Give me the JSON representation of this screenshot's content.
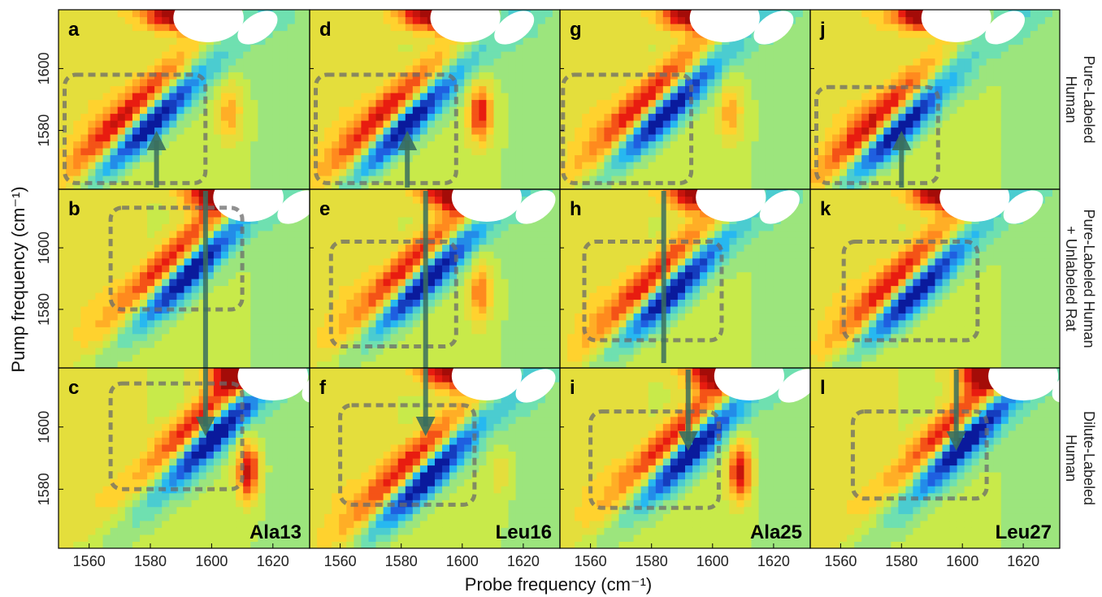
{
  "chart_data": {
    "type": "heatmap",
    "xlabel": "Probe frequency (cm⁻¹)",
    "ylabel": "Pump frequency (cm⁻¹)",
    "xlim": [
      1550,
      1632
    ],
    "ylim": [
      1561,
      1619
    ],
    "x_ticks": [
      "1560",
      "1580",
      "1600",
      "1620"
    ],
    "y_ticks": [
      "1580",
      "1600"
    ],
    "grid": false,
    "colormap": [
      "#0a1a9c",
      "#1f5fe0",
      "#27b8f0",
      "#6fe0b0",
      "#c8ea4a",
      "#ffd22e",
      "#ff8a1e",
      "#e81c10",
      "#a40c08"
    ],
    "rows": [
      {
        "label_lines": [
          "Pure-Labeled",
          "Human"
        ]
      },
      {
        "label_lines": [
          "Pure-Labeled Human",
          "+ Unlabeled Rat"
        ]
      },
      {
        "label_lines": [
          "Dilute-Labeled",
          "Human"
        ]
      }
    ],
    "columns": [
      {
        "residue": "Ala13"
      },
      {
        "residue": "Leu16"
      },
      {
        "residue": "Ala25"
      },
      {
        "residue": "Leu27"
      }
    ],
    "panels": [
      {
        "letter": "a",
        "row": 0,
        "col": 0,
        "bleach": [
          1579,
          1582
        ],
        "pos_x": 1606,
        "pos_amp": 0.45,
        "box": [
          1552,
          1598,
          1563,
          1598
        ]
      },
      {
        "letter": "b",
        "row": 1,
        "col": 0,
        "bleach": [
          1592,
          1592
        ],
        "pos_x": 0,
        "pos_amp": 0,
        "box": [
          1567,
          1610,
          1580,
          1613
        ]
      },
      {
        "letter": "c",
        "row": 2,
        "col": 0,
        "bleach": [
          1600,
          1597
        ],
        "pos_x": 1612,
        "pos_amp": 0.95,
        "box": [
          1567,
          1610,
          1580,
          1614
        ]
      },
      {
        "letter": "d",
        "row": 0,
        "col": 1,
        "bleach": [
          1581,
          1582
        ],
        "pos_x": 1606,
        "pos_amp": 0.85,
        "box": [
          1552,
          1598,
          1563,
          1598
        ]
      },
      {
        "letter": "e",
        "row": 1,
        "col": 1,
        "bleach": [
          1588,
          1590
        ],
        "pos_x": 1606,
        "pos_amp": 0.6,
        "box": [
          1557,
          1598,
          1568,
          1602
        ]
      },
      {
        "letter": "f",
        "row": 2,
        "col": 1,
        "bleach": [
          1588,
          1584
        ],
        "pos_x": 1612,
        "pos_amp": 0.2,
        "box": [
          1560,
          1604,
          1575,
          1607
        ]
      },
      {
        "letter": "g",
        "row": 0,
        "col": 2,
        "bleach": [
          1584,
          1586
        ],
        "pos_x": 1606,
        "pos_amp": 0.45,
        "box": [
          1551,
          1593,
          1563,
          1598
        ]
      },
      {
        "letter": "h",
        "row": 1,
        "col": 2,
        "bleach": [
          1586,
          1586
        ],
        "pos_x": 0,
        "pos_amp": 0,
        "box": [
          1558,
          1603,
          1570,
          1602
        ]
      },
      {
        "letter": "i",
        "row": 2,
        "col": 2,
        "bleach": [
          1592,
          1592
        ],
        "pos_x": 1609,
        "pos_amp": 0.9,
        "box": [
          1560,
          1602,
          1574,
          1605
        ]
      },
      {
        "letter": "j",
        "row": 0,
        "col": 3,
        "bleach": [
          1578,
          1580
        ],
        "pos_x": 0,
        "pos_amp": 0,
        "box": [
          1552,
          1592,
          1563,
          1594
        ]
      },
      {
        "letter": "k",
        "row": 1,
        "col": 3,
        "bleach": [
          1584,
          1586
        ],
        "pos_x": 0,
        "pos_amp": 0,
        "box": [
          1561,
          1605,
          1570,
          1602
        ]
      },
      {
        "letter": "l",
        "row": 2,
        "col": 3,
        "bleach": [
          1600,
          1595
        ],
        "pos_x": 0,
        "pos_amp": 0,
        "box": [
          1564,
          1608,
          1577,
          1605
        ]
      }
    ],
    "arrows": [
      {
        "col": 0,
        "probe": 1582,
        "kind": "up"
      },
      {
        "col": 0,
        "probe": 1598,
        "kind": "long"
      },
      {
        "col": 1,
        "probe": 1582,
        "kind": "up"
      },
      {
        "col": 1,
        "probe": 1588,
        "kind": "long"
      },
      {
        "col": 2,
        "probe": 1584,
        "kind": "long"
      },
      {
        "col": 2,
        "probe": 1592,
        "kind": "down"
      },
      {
        "col": 3,
        "probe": 1580,
        "kind": "up"
      },
      {
        "col": 3,
        "probe": 1598,
        "kind": "down"
      }
    ]
  }
}
